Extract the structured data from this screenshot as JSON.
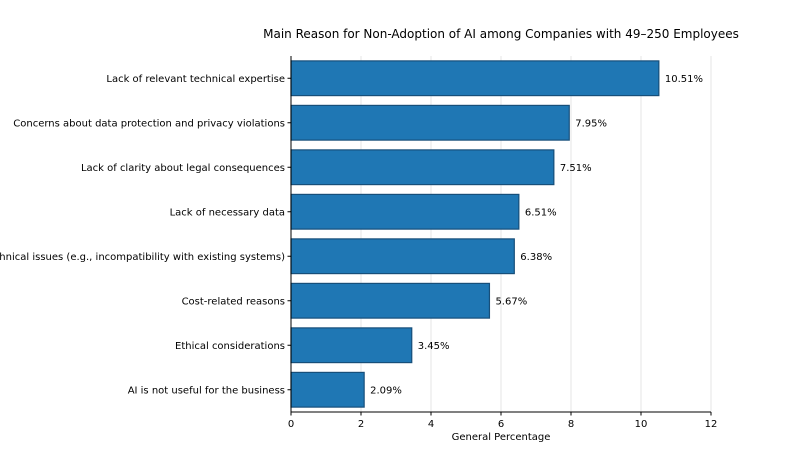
{
  "chart_data": {
    "type": "bar",
    "orientation": "horizontal",
    "title": "Main Reason for Non-Adoption of AI among Companies with 49–250 Employees",
    "xlabel": "General Percentage",
    "ylabel": "",
    "xlim": [
      0,
      12
    ],
    "xticks": [
      0,
      2,
      4,
      6,
      8,
      10,
      12
    ],
    "grid": "x",
    "bar_color": "#1f77b4",
    "bar_edge_color": "#174f7a",
    "categories": [
      "Lack of relevant technical expertise",
      "Concerns about data protection and privacy violations",
      "Lack of clarity about legal consequences",
      "Lack of necessary data",
      "Technical issues (e.g., incompatibility with existing systems)",
      "Cost-related reasons",
      "Ethical considerations",
      "AI is not useful for the business"
    ],
    "values": [
      10.51,
      7.95,
      7.51,
      6.51,
      6.38,
      5.67,
      3.45,
      2.09
    ],
    "value_labels": [
      "10.51%",
      "7.95%",
      "7.51%",
      "6.51%",
      "6.38%",
      "5.67%",
      "3.45%",
      "2.09%"
    ]
  }
}
